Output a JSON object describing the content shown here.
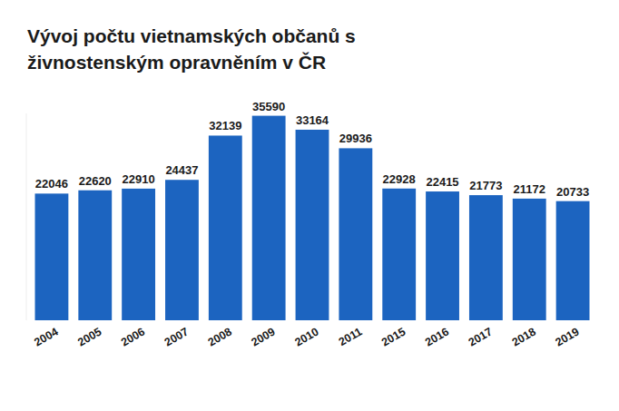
{
  "chart_data": {
    "type": "bar",
    "title": "Vývoj počtu vietnamských občanů s živnostenským opravněním v ČR",
    "categories": [
      "2004",
      "2005",
      "2006",
      "2007",
      "2008",
      "2009",
      "2010",
      "2011",
      "2015",
      "2016",
      "2017",
      "2018",
      "2019"
    ],
    "values": [
      22046,
      22620,
      22910,
      24437,
      32139,
      35590,
      33164,
      29936,
      22928,
      22415,
      21773,
      21172,
      20733
    ],
    "color": "#1c64c0",
    "ylim": [
      0,
      36000
    ],
    "data_labels": true,
    "tick_labels": "x",
    "grid": false
  }
}
